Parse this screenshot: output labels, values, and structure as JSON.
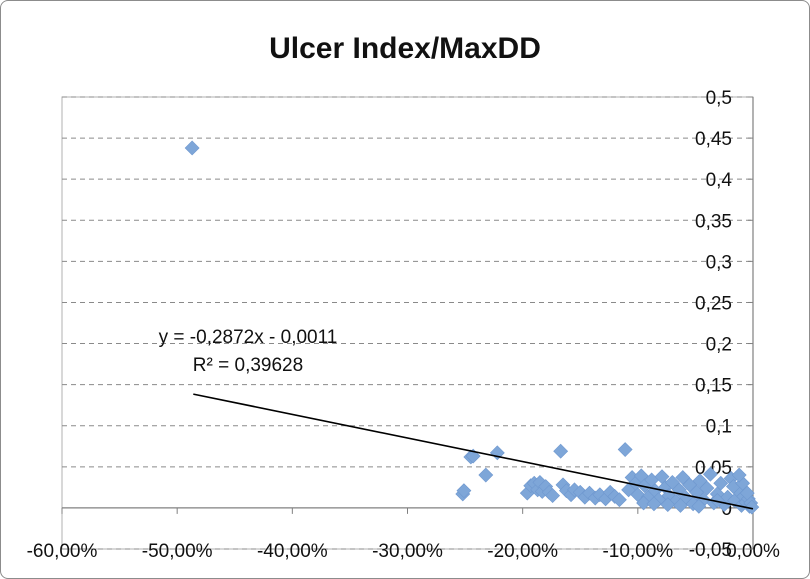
{
  "chart_data": {
    "type": "scatter",
    "title": "Ulcer Index/MaxDD",
    "xlabel": "",
    "ylabel": "",
    "xlim": [
      -0.6,
      0.0
    ],
    "ylim": [
      -0.05,
      0.5
    ],
    "x_ticks": [
      -0.6,
      -0.5,
      -0.4,
      -0.3,
      -0.2,
      -0.1,
      0.0
    ],
    "x_tick_labels": [
      "-60,00%",
      "-50,00%",
      "-40,00%",
      "-30,00%",
      "-20,00%",
      "-10,00%",
      "0,00%"
    ],
    "y_ticks": [
      0.5,
      0.45,
      0.4,
      0.35,
      0.3,
      0.25,
      0.2,
      0.15,
      0.1,
      0.05,
      0,
      -0.05
    ],
    "y_tick_labels": [
      "0,5",
      "0,45",
      "0,4",
      "0,35",
      "0,3",
      "0,25",
      "0,2",
      "0,15",
      "0,1",
      "0,05",
      "0",
      "-0,05"
    ],
    "grid": "horizontal-dashed",
    "marker_color": "#7ea6d8",
    "trendline": {
      "type": "linear",
      "equation_label": "y = -0,2872x - 0,0011",
      "r2_label": "R² = 0,39628",
      "slope": -0.2872,
      "intercept": -0.0011,
      "x_range": [
        -0.486,
        0.0
      ],
      "color": "#000000"
    },
    "series": [
      {
        "points": [
          [
            -0.487,
            0.438
          ],
          [
            -0.252,
            0.017
          ],
          [
            -0.251,
            0.021
          ],
          [
            -0.245,
            0.062
          ],
          [
            -0.243,
            0.063
          ],
          [
            -0.232,
            0.04
          ],
          [
            -0.222,
            0.067
          ],
          [
            -0.196,
            0.018
          ],
          [
            -0.193,
            0.027
          ],
          [
            -0.19,
            0.03
          ],
          [
            -0.187,
            0.022
          ],
          [
            -0.185,
            0.031
          ],
          [
            -0.183,
            0.02
          ],
          [
            -0.18,
            0.026
          ],
          [
            -0.177,
            0.019
          ],
          [
            -0.174,
            0.015
          ],
          [
            -0.167,
            0.069
          ],
          [
            -0.165,
            0.028
          ],
          [
            -0.162,
            0.021
          ],
          [
            -0.158,
            0.016
          ],
          [
            -0.155,
            0.022
          ],
          [
            -0.15,
            0.019
          ],
          [
            -0.146,
            0.013
          ],
          [
            -0.142,
            0.018
          ],
          [
            -0.137,
            0.012
          ],
          [
            -0.133,
            0.016
          ],
          [
            -0.128,
            0.011
          ],
          [
            -0.124,
            0.019
          ],
          [
            -0.12,
            0.014
          ],
          [
            -0.116,
            0.01
          ],
          [
            -0.111,
            0.071
          ],
          [
            -0.108,
            0.022
          ],
          [
            -0.105,
            0.037
          ],
          [
            -0.102,
            0.03
          ],
          [
            -0.1,
            0.016
          ],
          [
            -0.097,
            0.039
          ],
          [
            -0.094,
            0.027
          ],
          [
            -0.091,
            0.013
          ],
          [
            -0.088,
            0.034
          ],
          [
            -0.085,
            0.021
          ],
          [
            -0.082,
            0.01
          ],
          [
            -0.079,
            0.038
          ],
          [
            -0.076,
            0.025
          ],
          [
            -0.073,
            0.015
          ],
          [
            -0.07,
            0.031
          ],
          [
            -0.067,
            0.008
          ],
          [
            -0.064,
            0.022
          ],
          [
            -0.061,
            0.037
          ],
          [
            -0.058,
            0.012
          ],
          [
            -0.055,
            0.028
          ],
          [
            -0.052,
            0.005
          ],
          [
            -0.049,
            0.019
          ],
          [
            -0.046,
            0.033
          ],
          [
            -0.043,
            0.01
          ],
          [
            -0.04,
            0.024
          ],
          [
            -0.037,
            0.041
          ],
          [
            -0.034,
            0.006
          ],
          [
            -0.031,
            0.017
          ],
          [
            -0.028,
            0.03
          ],
          [
            -0.025,
            0.004
          ],
          [
            -0.022,
            0.013
          ],
          [
            -0.019,
            0.036
          ],
          [
            -0.016,
            0.009
          ],
          [
            -0.013,
            0.021
          ],
          [
            -0.01,
            0.003
          ],
          [
            -0.008,
            0.014
          ],
          [
            -0.006,
            0.007
          ],
          [
            -0.004,
            0.011
          ],
          [
            -0.003,
            0.002
          ],
          [
            -0.002,
            0.006
          ],
          [
            -0.001,
            0.001
          ],
          [
            -0.095,
            0.006
          ],
          [
            -0.086,
            0.005
          ],
          [
            -0.074,
            0.004
          ],
          [
            -0.063,
            0.003
          ],
          [
            -0.047,
            0.002
          ],
          [
            -0.031,
            0.009
          ],
          [
            -0.017,
            0.026
          ],
          [
            -0.009,
            0.03
          ],
          [
            -0.005,
            0.018
          ],
          [
            -0.012,
            0.04
          ]
        ]
      }
    ]
  }
}
